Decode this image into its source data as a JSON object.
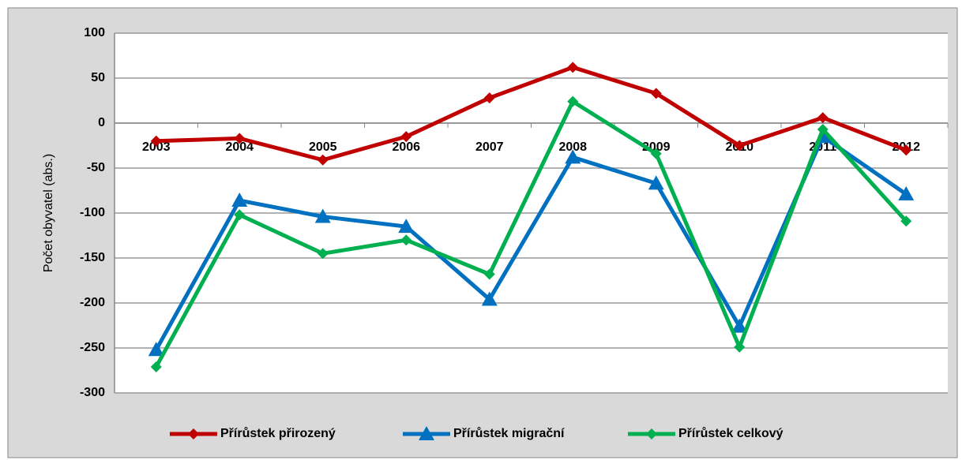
{
  "chart_data": {
    "type": "line",
    "y_label": "Počet obyvatel (abs.)",
    "categories": [
      "2003",
      "2004",
      "2005",
      "2006",
      "2007",
      "2008",
      "2009",
      "2010",
      "2011",
      "2012"
    ],
    "series": [
      {
        "name": "Přírůstek přirozený",
        "color": "#c00000",
        "marker": "diamond",
        "values": [
          -20,
          -17,
          -41,
          -15,
          28,
          62,
          33,
          -25,
          6,
          -30
        ]
      },
      {
        "name": "Přírůstek migrační",
        "color": "#0070c0",
        "marker": "triangle",
        "values": [
          -252,
          -86,
          -104,
          -115,
          -196,
          -38,
          -67,
          -226,
          -15,
          -79
        ]
      },
      {
        "name": "Přírůstek celkový",
        "color": "#00b050",
        "marker": "diamond",
        "values": [
          -271,
          -102,
          -145,
          -130,
          -168,
          24,
          -34,
          -249,
          -7,
          -109
        ]
      }
    ],
    "ylim": [
      -300,
      100
    ],
    "yticks": [
      -300,
      -250,
      -200,
      -150,
      -100,
      -50,
      0,
      50,
      100
    ],
    "grid": true,
    "legend": "bottom"
  }
}
